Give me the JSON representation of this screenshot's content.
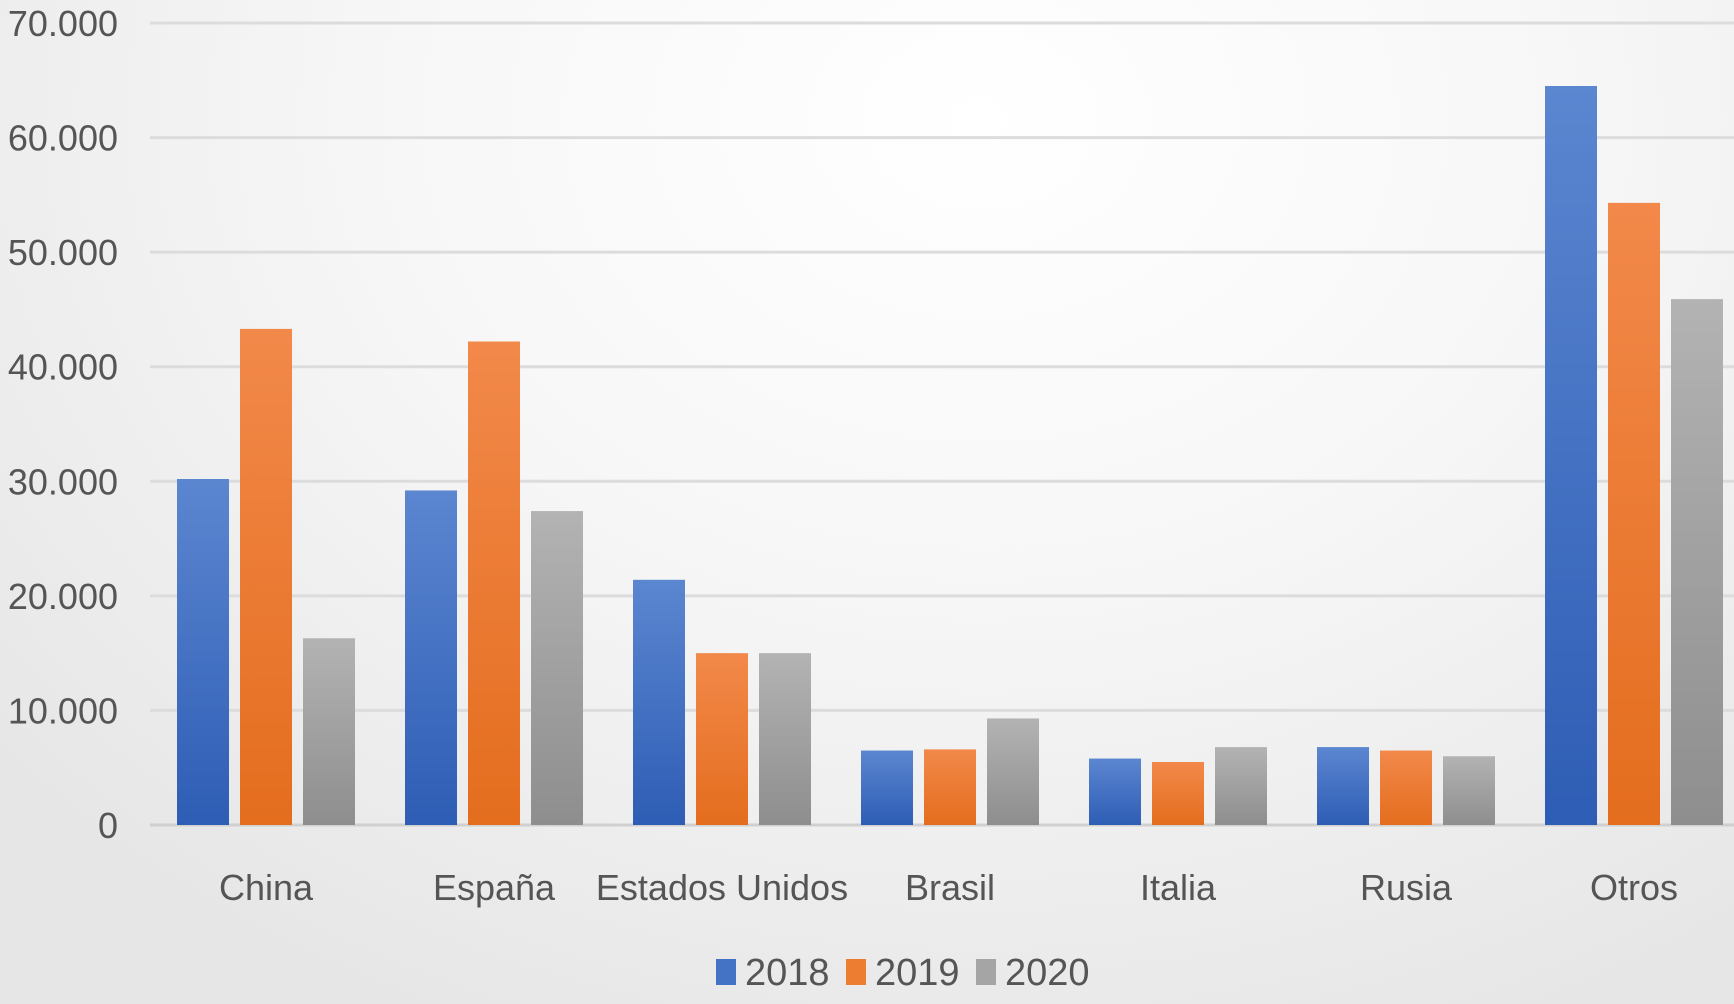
{
  "chart_data": {
    "type": "bar",
    "categories": [
      "China",
      "España",
      "Estados Unidos",
      "Brasil",
      "Italia",
      "Rusia",
      "Otros"
    ],
    "series": [
      {
        "name": "2018",
        "color": "#4472C4",
        "values": [
          30200,
          29200,
          21400,
          6500,
          5800,
          6800,
          64500
        ]
      },
      {
        "name": "2019",
        "color": "#ED7D31",
        "values": [
          43300,
          42200,
          15000,
          6600,
          5500,
          6500,
          54300
        ]
      },
      {
        "name": "2020",
        "color": "#A5A5A5",
        "values": [
          16300,
          27400,
          15000,
          9300,
          6800,
          6000,
          45900
        ]
      }
    ],
    "y_ticks": [
      "0",
      "10.000",
      "20.000",
      "30.000",
      "40.000",
      "50.000",
      "60.000",
      "70.000"
    ],
    "ylim": [
      0,
      70000
    ],
    "grid": true,
    "legend_position": "bottom",
    "title": "",
    "xlabel": "",
    "ylabel": ""
  }
}
